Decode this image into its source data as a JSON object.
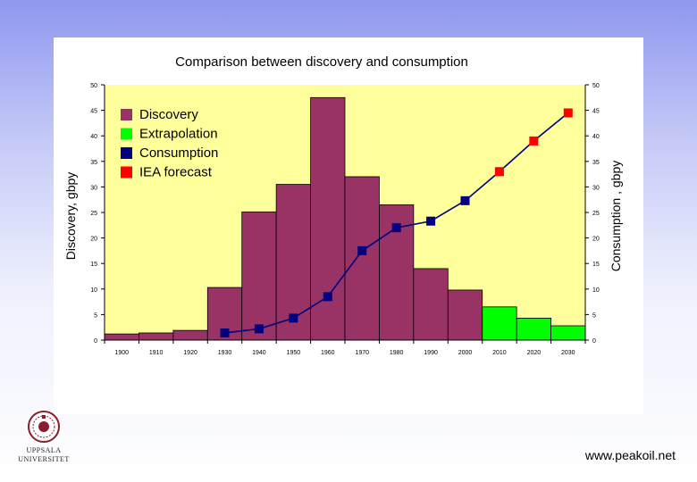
{
  "chart_data": {
    "type": "bar",
    "title": "Comparison between discovery and consumption",
    "ylabel_left": "Discovery, gbpy",
    "ylabel_right": "Consumption , gbpy",
    "ylim": [
      0,
      50
    ],
    "y_ticks": [
      0,
      5,
      10,
      15,
      20,
      25,
      30,
      35,
      40,
      45,
      50
    ],
    "y_tick_labels_left": [
      "0",
      "5",
      "10",
      "15",
      "20",
      "25",
      "30",
      "35",
      "40",
      "45",
      "50"
    ],
    "y_tick_labels_right": [
      "0",
      "5",
      "10",
      "15",
      "20",
      "25",
      "30",
      "35",
      "40",
      "45",
      "50"
    ],
    "grid": false,
    "legend_position": "top-left",
    "background_color": "#ffff9c",
    "categories": [
      "1900",
      "1910",
      "1920",
      "1930",
      "1940",
      "1950",
      "1960",
      "1970",
      "1980",
      "1990",
      "2000",
      "2010",
      "2020",
      "2030"
    ],
    "series": [
      {
        "name": "Discovery",
        "type": "bar",
        "color": "#993366",
        "values": [
          1.2,
          1.4,
          1.9,
          10.3,
          25.1,
          30.5,
          47.5,
          32.0,
          26.5,
          14.0,
          9.8,
          null,
          null,
          null
        ]
      },
      {
        "name": "Extrapolation",
        "type": "bar",
        "color": "#00ff00",
        "values": [
          null,
          null,
          null,
          null,
          null,
          null,
          null,
          null,
          null,
          null,
          null,
          6.5,
          4.3,
          2.8
        ]
      },
      {
        "name": "Consumption",
        "type": "line",
        "color": "#000080",
        "values": [
          null,
          null,
          null,
          1.4,
          2.2,
          4.3,
          8.5,
          17.5,
          22.0,
          23.3,
          27.3,
          null,
          null,
          null
        ]
      },
      {
        "name": "IEA forecast",
        "type": "line",
        "color": "#ff0000",
        "values": [
          null,
          null,
          null,
          null,
          null,
          null,
          null,
          null,
          null,
          null,
          27.3,
          33.0,
          39.0,
          44.5
        ]
      }
    ]
  },
  "logo": {
    "line1": "UPPSALA",
    "line2": "UNIVERSITET",
    "icon": "university-seal-icon"
  },
  "footer": {
    "url": "www.peakoil.net"
  }
}
